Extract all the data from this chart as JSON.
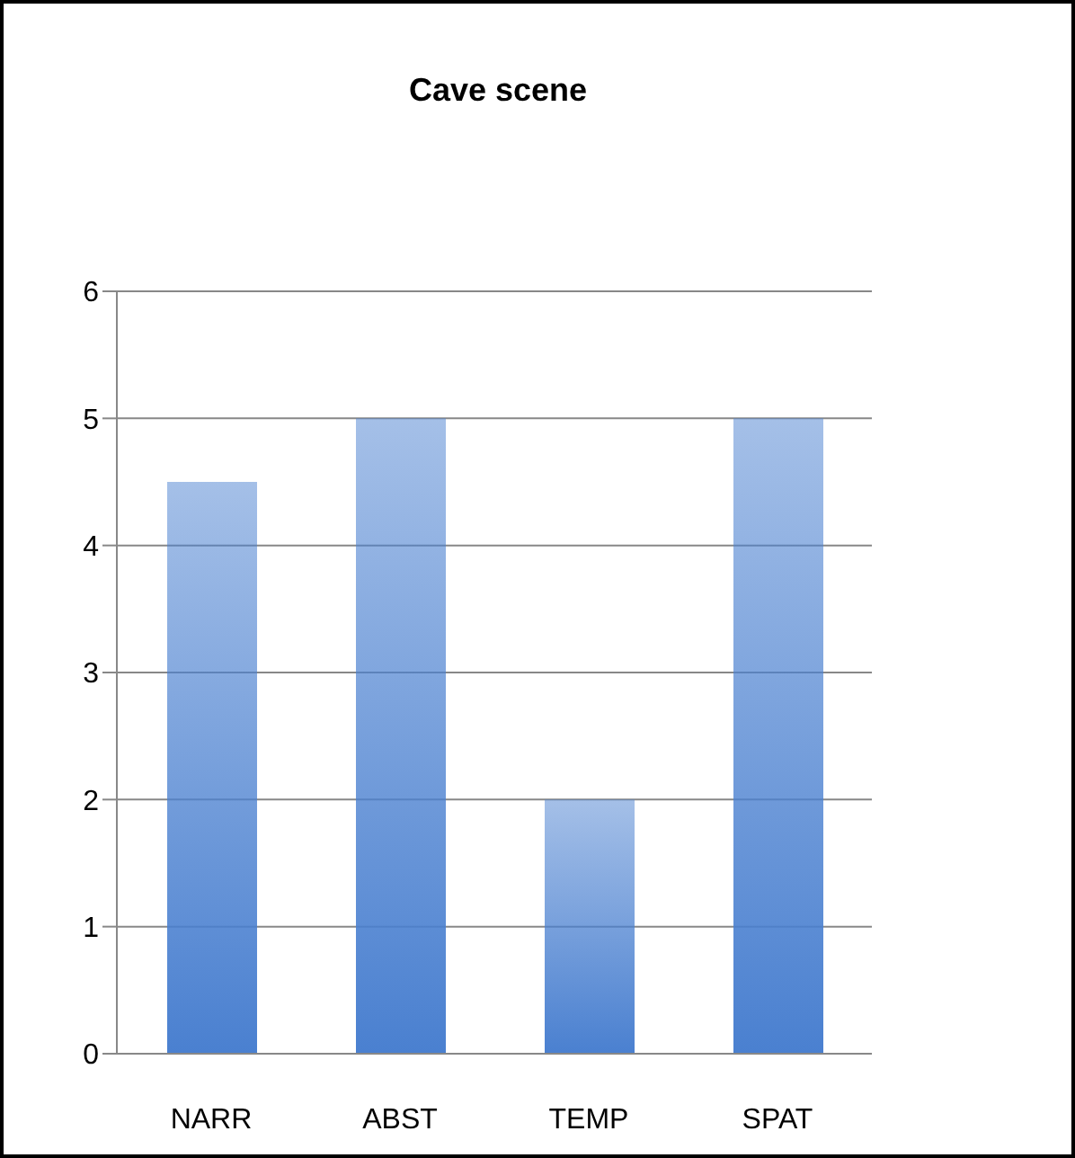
{
  "chart_data": {
    "type": "bar",
    "title": "Cave scene",
    "categories": [
      "NARR",
      "ABST",
      "TEMP",
      "SPAT"
    ],
    "values": [
      4.5,
      5,
      2,
      5
    ],
    "color": "#4a80d0",
    "ylim": [
      0,
      6
    ],
    "yticks": [
      0,
      1,
      2,
      3,
      4,
      5,
      6
    ],
    "grid": "y"
  }
}
